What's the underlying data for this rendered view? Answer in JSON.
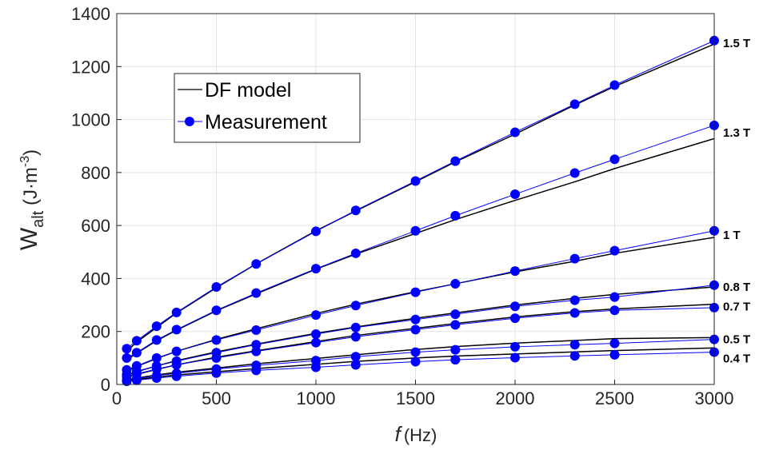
{
  "chart_data": {
    "type": "line",
    "xlabel_symbol": "f",
    "xlabel_unit": "(Hz)",
    "ylabel_main": "W",
    "ylabel_sub": "alt",
    "ylabel_unit_pre": " (J·m",
    "ylabel_unit_sup": "-3",
    "ylabel_unit_post": ")",
    "xlim": [
      0,
      3000
    ],
    "ylim": [
      0,
      1400
    ],
    "xticks": [
      0,
      500,
      1000,
      1500,
      2000,
      2500,
      3000
    ],
    "yticks": [
      0,
      200,
      400,
      600,
      800,
      1000,
      1200,
      1400
    ],
    "grid": true,
    "legend_position": "upper-left",
    "legend": {
      "model": "DF model",
      "measurement": "Measurement"
    },
    "colors": {
      "model": "#000000",
      "measurement": "#0000ff"
    },
    "x": [
      50,
      100,
      200,
      300,
      500,
      700,
      1000,
      1200,
      1500,
      1700,
      2000,
      2300,
      2500,
      3000
    ],
    "series": [
      {
        "label": "1.5 T",
        "model": [
          125,
          160,
          215,
          270,
          365,
          455,
          580,
          655,
          765,
          840,
          945,
          1055,
          1125,
          1285
        ],
        "measurement": [
          135,
          165,
          220,
          272,
          368,
          455,
          578,
          657,
          768,
          843,
          952,
          1058,
          1130,
          1298
        ]
      },
      {
        "label": "1.3 T",
        "model": [
          92,
          118,
          165,
          205,
          278,
          342,
          435,
          492,
          570,
          622,
          695,
          765,
          815,
          928
        ],
        "measurement": [
          100,
          120,
          168,
          207,
          280,
          345,
          437,
          495,
          580,
          637,
          718,
          798,
          850,
          978
        ]
      },
      {
        "label": "1 T",
        "model": [
          50,
          68,
          98,
          125,
          170,
          210,
          268,
          303,
          350,
          380,
          425,
          465,
          495,
          555
        ],
        "measurement": [
          55,
          70,
          100,
          125,
          168,
          205,
          262,
          298,
          348,
          380,
          428,
          475,
          505,
          580
        ]
      },
      {
        "label": "0.8 T",
        "model": [
          35,
          48,
          70,
          90,
          123,
          152,
          193,
          217,
          250,
          270,
          300,
          325,
          340,
          368
        ],
        "measurement": [
          38,
          50,
          70,
          88,
          120,
          150,
          190,
          215,
          245,
          265,
          295,
          318,
          330,
          375
        ]
      },
      {
        "label": "0.7 T",
        "model": [
          28,
          38,
          57,
          74,
          103,
          127,
          162,
          185,
          212,
          230,
          255,
          275,
          285,
          303
        ],
        "measurement": [
          30,
          40,
          58,
          74,
          100,
          125,
          158,
          180,
          207,
          225,
          250,
          270,
          280,
          290
        ]
      },
      {
        "label": "0.5 T",
        "model": [
          18,
          24,
          36,
          46,
          62,
          78,
          98,
          112,
          132,
          143,
          156,
          166,
          173,
          177
        ],
        "measurement": [
          17,
          22,
          33,
          42,
          58,
          72,
          90,
          105,
          122,
          131,
          142,
          150,
          155,
          170
        ]
      },
      {
        "label": "0.4 T",
        "model": [
          14,
          19,
          28,
          36,
          48,
          60,
          76,
          87,
          100,
          107,
          115,
          123,
          128,
          138
        ],
        "measurement": [
          12,
          16,
          24,
          31,
          43,
          53,
          65,
          74,
          86,
          93,
          101,
          108,
          112,
          122
        ]
      }
    ]
  }
}
